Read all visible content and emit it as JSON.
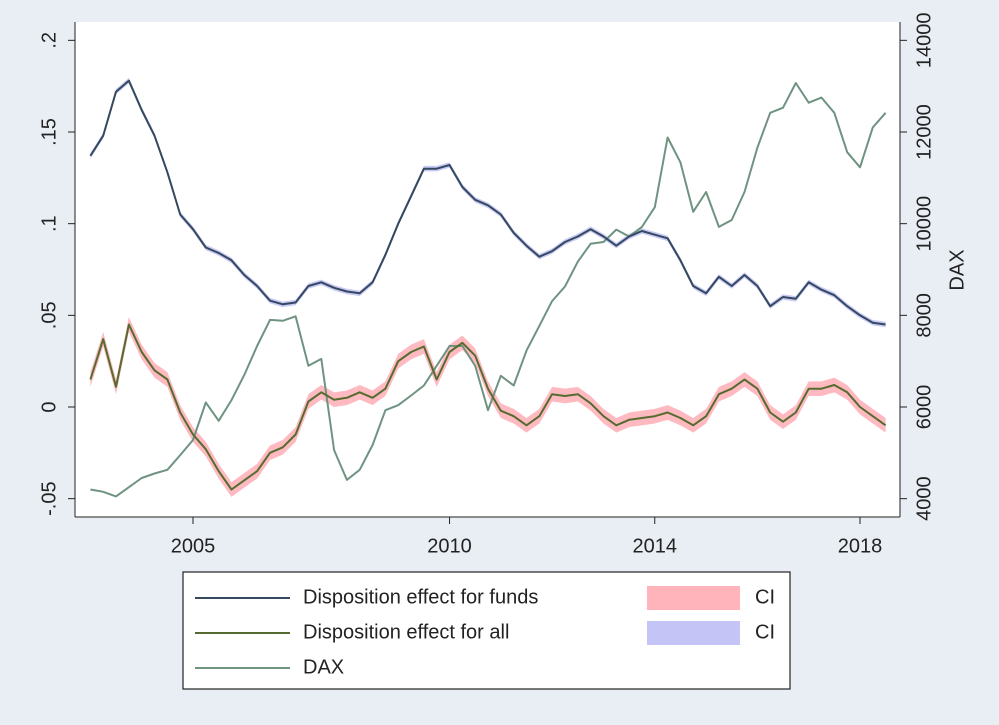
{
  "chart_data": {
    "type": "line",
    "y2label": "DAX",
    "x": [
      2003,
      2003.25,
      2003.5,
      2003.75,
      2004,
      2004.25,
      2004.5,
      2004.75,
      2005,
      2005.25,
      2005.5,
      2005.75,
      2006,
      2006.25,
      2006.5,
      2006.75,
      2007,
      2007.25,
      2007.5,
      2007.75,
      2008,
      2008.25,
      2008.5,
      2008.75,
      2009,
      2009.25,
      2009.5,
      2009.75,
      2010,
      2010.25,
      2010.5,
      2010.75,
      2011,
      2011.25,
      2011.5,
      2011.75,
      2012,
      2012.25,
      2012.5,
      2012.75,
      2013,
      2013.25,
      2013.5,
      2013.75,
      2014,
      2014.25,
      2014.5,
      2014.75,
      2015,
      2015.25,
      2015.5,
      2015.75,
      2016,
      2016.25,
      2016.5,
      2016.75,
      2017,
      2017.25,
      2017.5,
      2017.75,
      2018,
      2018.25,
      2018.5
    ],
    "xlim": [
      2002.7,
      2018.78
    ],
    "xticks": [
      2005,
      2010,
      2014,
      2018
    ],
    "ylim": [
      -0.06,
      0.21
    ],
    "yticks": [
      {
        "value": -0.05,
        "label": "-.05"
      },
      0,
      {
        "value": 0.05,
        "label": ".05"
      },
      {
        "value": 0.1,
        "label": ".1"
      },
      {
        "value": 0.15,
        "label": ".15"
      },
      {
        "value": 0.2,
        "label": ".2"
      }
    ],
    "y2lim": [
      3600,
      14400
    ],
    "y2ticks": [
      4000,
      6000,
      8000,
      10000,
      12000,
      14000
    ],
    "grid": false,
    "legend": "bottom",
    "series": [
      {
        "name": "Disposition effect for funds",
        "color": "#34495e",
        "values": [
          0.137,
          0.148,
          0.172,
          0.178,
          0.162,
          0.148,
          0.128,
          0.105,
          0.097,
          0.087,
          0.084,
          0.08,
          0.072,
          0.066,
          0.058,
          0.056,
          0.057,
          0.066,
          0.068,
          0.065,
          0.063,
          0.062,
          0.068,
          0.083,
          0.1,
          0.115,
          0.13,
          0.13,
          0.132,
          0.12,
          0.113,
          0.11,
          0.105,
          0.095,
          0.088,
          0.082,
          0.085,
          0.09,
          0.093,
          0.097,
          0.093,
          0.088,
          0.093,
          0.096,
          0.094,
          0.092,
          0.08,
          0.066,
          0.062,
          0.071,
          0.066,
          0.072,
          0.066,
          0.055,
          0.06,
          0.059,
          0.068,
          0.064,
          0.061,
          0.055,
          0.05,
          0.046,
          0.045
        ]
      },
      {
        "name": "Disposition effect for all",
        "color": "#556b2f",
        "values": [
          0.015,
          0.037,
          0.011,
          0.045,
          0.03,
          0.02,
          0.015,
          -0.003,
          -0.015,
          -0.023,
          -0.035,
          -0.045,
          -0.04,
          -0.035,
          -0.025,
          -0.022,
          -0.015,
          0.003,
          0.008,
          0.004,
          0.005,
          0.008,
          0.005,
          0.01,
          0.025,
          0.03,
          0.033,
          0.015,
          0.03,
          0.035,
          0.028,
          0.01,
          -0.002,
          -0.005,
          -0.01,
          -0.005,
          0.007,
          0.006,
          0.007,
          0.002,
          -0.005,
          -0.01,
          -0.007,
          -0.006,
          -0.005,
          -0.003,
          -0.006,
          -0.01,
          -0.005,
          0.007,
          0.01,
          0.015,
          0.01,
          -0.003,
          -0.008,
          -0.003,
          0.01,
          0.01,
          0.012,
          0.008,
          0.0,
          -0.005,
          -0.01
        ]
      },
      {
        "name": "DAX",
        "color": "#6f9381",
        "axis": "y2",
        "values": [
          4200,
          4150,
          4050,
          4250,
          4450,
          4550,
          4630,
          4950,
          5280,
          6100,
          5700,
          6150,
          6700,
          7330,
          7900,
          7880,
          7980,
          6900,
          7050,
          5060,
          4410,
          4630,
          5170,
          5930,
          6040,
          6250,
          6470,
          6900,
          7330,
          7330,
          6900,
          5930,
          6680,
          6470,
          7230,
          7770,
          8310,
          8630,
          9170,
          9560,
          9600,
          9870,
          9720,
          9930,
          10360,
          11880,
          11340,
          10260,
          10690,
          9930,
          10080,
          10690,
          11660,
          12420,
          12530,
          13070,
          12640,
          12750,
          12420,
          11560,
          11230,
          12100,
          12420
        ]
      },
      {
        "name": "CI",
        "color": "#ffb3ba",
        "lower": [
          0.011,
          0.033,
          0.007,
          0.041,
          0.026,
          0.016,
          0.011,
          -0.007,
          -0.019,
          -0.027,
          -0.039,
          -0.049,
          -0.044,
          -0.039,
          -0.029,
          -0.026,
          -0.019,
          -0.001,
          0.004,
          0.0,
          0.001,
          0.004,
          0.001,
          0.006,
          0.021,
          0.026,
          0.029,
          0.011,
          0.026,
          0.031,
          0.024,
          0.006,
          -0.006,
          -0.009,
          -0.014,
          -0.009,
          0.003,
          0.002,
          0.003,
          -0.002,
          -0.009,
          -0.014,
          -0.011,
          -0.01,
          -0.009,
          -0.007,
          -0.01,
          -0.014,
          -0.009,
          0.003,
          0.006,
          0.011,
          0.006,
          -0.007,
          -0.012,
          -0.007,
          0.006,
          0.006,
          0.008,
          0.004,
          -0.004,
          -0.009,
          -0.014
        ],
        "upper": [
          0.019,
          0.041,
          0.015,
          0.049,
          0.034,
          0.024,
          0.019,
          0.001,
          -0.011,
          -0.019,
          -0.031,
          -0.041,
          -0.036,
          -0.031,
          -0.021,
          -0.018,
          -0.011,
          0.007,
          0.012,
          0.008,
          0.009,
          0.012,
          0.009,
          0.014,
          0.029,
          0.034,
          0.037,
          0.019,
          0.034,
          0.039,
          0.032,
          0.014,
          0.002,
          -0.001,
          -0.006,
          -0.001,
          0.011,
          0.01,
          0.011,
          0.006,
          -0.001,
          -0.006,
          -0.003,
          -0.002,
          -0.001,
          0.001,
          -0.002,
          -0.006,
          -0.001,
          0.011,
          0.014,
          0.019,
          0.014,
          0.001,
          -0.004,
          0.001,
          0.014,
          0.014,
          0.016,
          0.012,
          0.004,
          -0.001,
          -0.006
        ]
      },
      {
        "name": "CI",
        "color": "#c4c4f7",
        "lower": [
          0.1355,
          0.1465,
          0.1705,
          0.1765,
          0.1605,
          0.1465,
          0.1265,
          0.1035,
          0.0955,
          0.0855,
          0.0825,
          0.0785,
          0.0705,
          0.0645,
          0.0565,
          0.0545,
          0.0555,
          0.0645,
          0.0665,
          0.0635,
          0.0615,
          0.0605,
          0.0665,
          0.0815,
          0.0985,
          0.1135,
          0.1285,
          0.1285,
          0.1305,
          0.1185,
          0.1115,
          0.1085,
          0.1035,
          0.0935,
          0.0865,
          0.0805,
          0.0835,
          0.0885,
          0.0915,
          0.0955,
          0.0915,
          0.0865,
          0.0915,
          0.0945,
          0.0925,
          0.0905,
          0.0785,
          0.0645,
          0.0605,
          0.0695,
          0.0645,
          0.0705,
          0.0645,
          0.0535,
          0.0585,
          0.0575,
          0.0665,
          0.0625,
          0.0595,
          0.0535,
          0.0485,
          0.0445,
          0.0435
        ],
        "upper": [
          0.1385,
          0.1495,
          0.1735,
          0.1795,
          0.1635,
          0.1495,
          0.1295,
          0.1065,
          0.0985,
          0.0885,
          0.0855,
          0.0815,
          0.0735,
          0.0675,
          0.0595,
          0.0575,
          0.0585,
          0.0675,
          0.0695,
          0.0665,
          0.0645,
          0.0635,
          0.0695,
          0.0845,
          0.1015,
          0.1165,
          0.1315,
          0.1315,
          0.1335,
          0.1215,
          0.1145,
          0.1115,
          0.1065,
          0.0965,
          0.0895,
          0.0835,
          0.0865,
          0.0915,
          0.0945,
          0.0985,
          0.0945,
          0.0895,
          0.0945,
          0.0975,
          0.0955,
          0.0935,
          0.0815,
          0.0675,
          0.0635,
          0.0725,
          0.0675,
          0.0735,
          0.0675,
          0.0565,
          0.0615,
          0.0605,
          0.0695,
          0.0655,
          0.0625,
          0.0565,
          0.0515,
          0.0475,
          0.0465
        ]
      }
    ]
  }
}
